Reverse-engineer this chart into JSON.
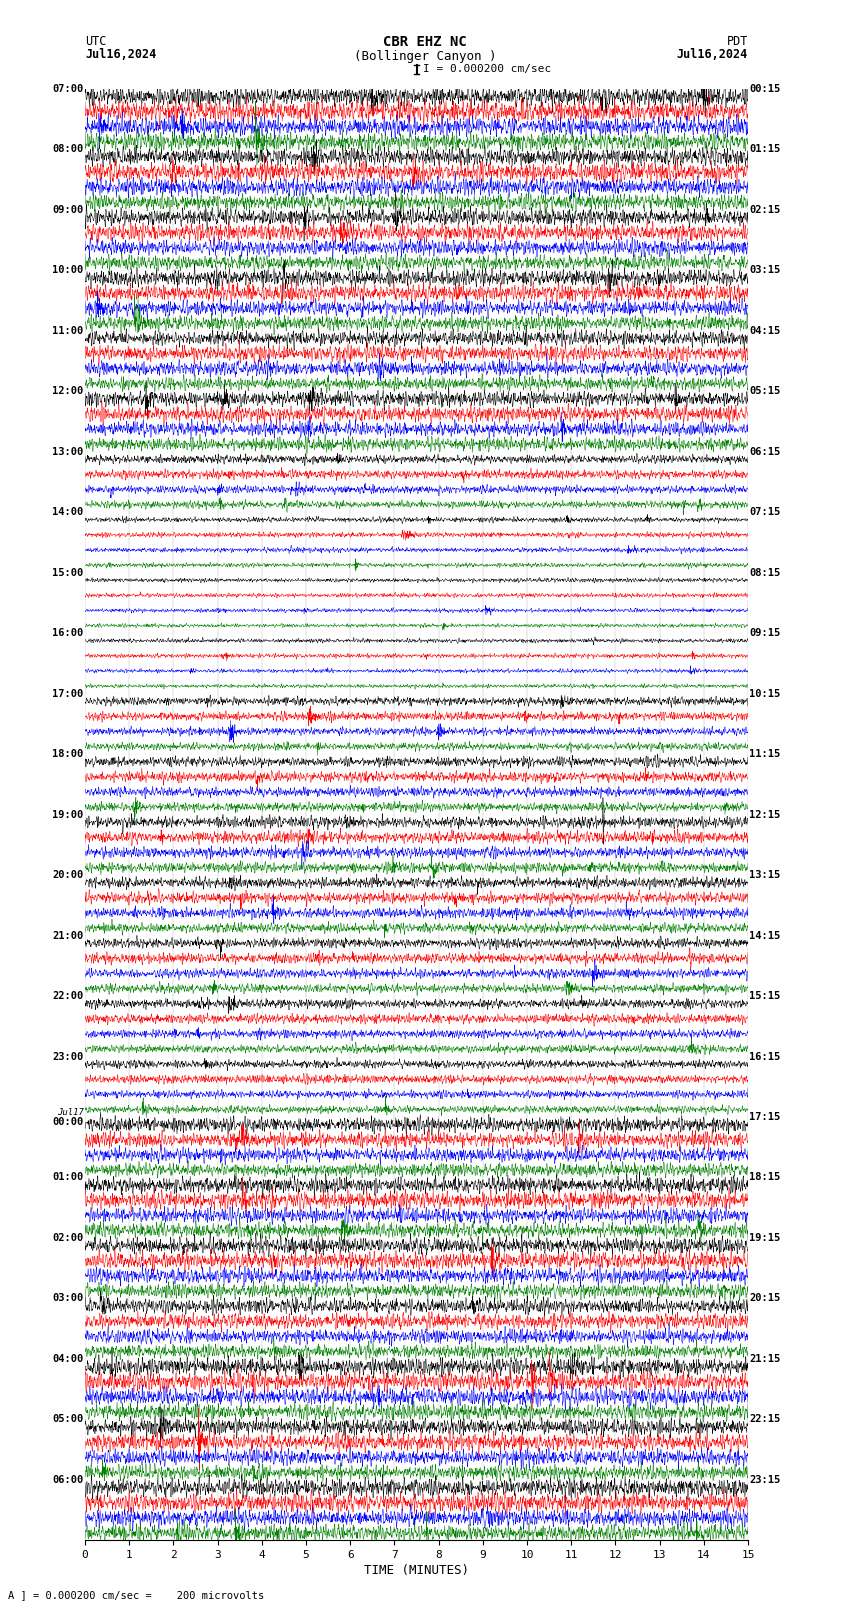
{
  "title_line1": "CBR EHZ NC",
  "title_line2": "(Bollinger Canyon )",
  "scale_bar_label": "I = 0.000200 cm/sec",
  "left_header": "UTC",
  "left_date": "Jul16,2024",
  "right_header": "PDT",
  "right_date": "Jul16,2024",
  "xlabel": "TIME (MINUTES)",
  "bottom_note": "A ] = 0.000200 cm/sec =    200 microvolts",
  "utc_times": [
    "07:00",
    "08:00",
    "09:00",
    "10:00",
    "11:00",
    "12:00",
    "13:00",
    "14:00",
    "15:00",
    "16:00",
    "17:00",
    "18:00",
    "19:00",
    "20:00",
    "21:00",
    "22:00",
    "23:00",
    "00:00",
    "01:00",
    "02:00",
    "03:00",
    "04:00",
    "05:00",
    "06:00"
  ],
  "pdt_times": [
    "00:15",
    "01:15",
    "02:15",
    "03:15",
    "04:15",
    "05:15",
    "06:15",
    "07:15",
    "08:15",
    "09:15",
    "10:15",
    "11:15",
    "12:15",
    "13:15",
    "14:15",
    "15:15",
    "16:15",
    "17:15",
    "18:15",
    "19:15",
    "20:15",
    "21:15",
    "22:15",
    "23:15"
  ],
  "n_hours": 24,
  "colors": [
    "black",
    "red",
    "blue",
    "green"
  ],
  "background_color": "white",
  "figsize": [
    8.5,
    16.13
  ],
  "dpi": 100,
  "xlim": [
    0,
    15
  ],
  "xticks": [
    0,
    1,
    2,
    3,
    4,
    5,
    6,
    7,
    8,
    9,
    10,
    11,
    12,
    13,
    14,
    15
  ],
  "jul17_hour_idx": 17,
  "amplitudes": [
    1.2,
    1.1,
    1.0,
    1.0,
    0.9,
    0.9,
    0.5,
    0.3,
    0.25,
    0.25,
    0.5,
    0.6,
    0.7,
    0.65,
    0.6,
    0.55,
    0.5,
    0.9,
    1.0,
    1.0,
    0.9,
    1.1,
    1.0,
    1.1
  ]
}
